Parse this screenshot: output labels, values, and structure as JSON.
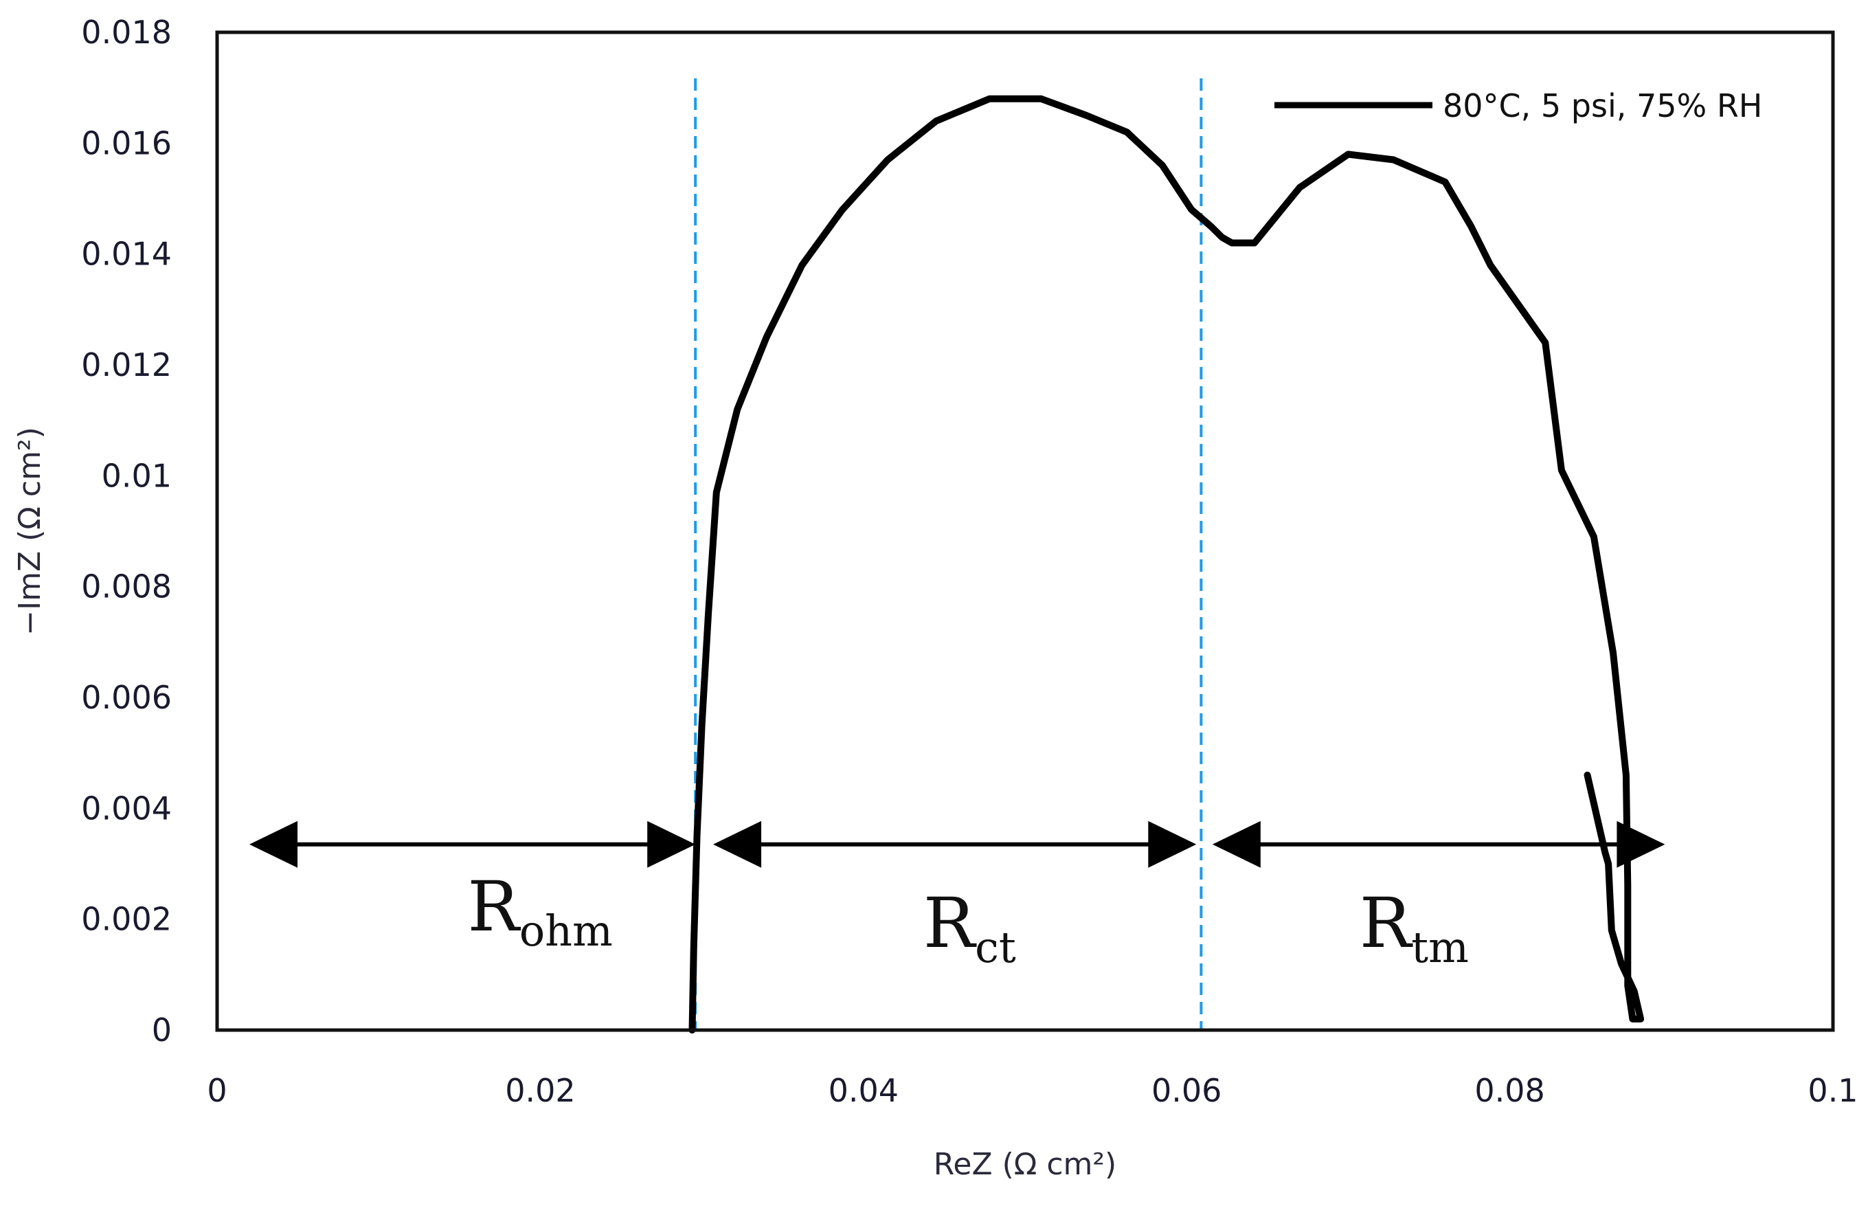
{
  "chart_data": {
    "type": "line",
    "title": "",
    "xlabel": "ReZ (Ω cm²)",
    "ylabel": "−ImZ (Ω cm²)",
    "xlim": [
      0,
      0.1
    ],
    "ylim": [
      0,
      0.018
    ],
    "xticks": [
      "0",
      "0.02",
      "0.04",
      "0.06",
      "0.08",
      "0.1"
    ],
    "yticks": [
      "0",
      "0.002",
      "0.004",
      "0.006",
      "0.008",
      "0.01",
      "0.012",
      "0.014",
      "0.016",
      "0.018"
    ],
    "series": [
      {
        "name": "80°C, 5 psi, 75% RH",
        "color": "#000000",
        "x": [
          0.0294,
          0.0295,
          0.0297,
          0.03,
          0.0304,
          0.0309,
          0.0322,
          0.034,
          0.0362,
          0.0387,
          0.0415,
          0.0445,
          0.0478,
          0.051,
          0.0538,
          0.0563,
          0.0585,
          0.0603,
          0.0615,
          0.0622,
          0.0628,
          0.0642,
          0.067,
          0.07,
          0.0728,
          0.076,
          0.0776,
          0.0788,
          0.0805,
          0.0822,
          0.0832,
          0.0852,
          0.0864,
          0.0872,
          0.0873,
          0.0873,
          0.0876,
          0.0881,
          0.0877,
          0.0869,
          0.0863,
          0.0861,
          0.0859,
          0.0848
        ],
        "y": [
          0.0,
          0.0015,
          0.0035,
          0.0055,
          0.0075,
          0.0097,
          0.0112,
          0.0125,
          0.0138,
          0.0148,
          0.0157,
          0.0164,
          0.0168,
          0.0168,
          0.0165,
          0.0162,
          0.0156,
          0.0148,
          0.0145,
          0.0143,
          0.0142,
          0.0142,
          0.0152,
          0.0158,
          0.0157,
          0.0153,
          0.0145,
          0.0138,
          0.0131,
          0.0124,
          0.0101,
          0.0089,
          0.0068,
          0.0046,
          0.0026,
          0.0008,
          0.0002,
          0.0002,
          0.0007,
          0.0012,
          0.0018,
          0.003,
          0.0032,
          0.0046
        ]
      }
    ],
    "vlines": [
      {
        "x": 0.0296,
        "color": "#1e9be8",
        "style": "dashed"
      },
      {
        "x": 0.0609,
        "color": "#1e9be8",
        "style": "dashed"
      }
    ],
    "annotations": [
      {
        "label": "R",
        "sub": "ohm",
        "x_from": 0.002,
        "x_to": 0.0296,
        "arrow_y": 0.00335,
        "label_x": 0.0155,
        "label_y": 0.0018
      },
      {
        "label": "R",
        "sub": "ct",
        "x_from": 0.0307,
        "x_to": 0.0606,
        "arrow_y": 0.00335,
        "label_x": 0.0437,
        "label_y": 0.0015
      },
      {
        "label": "R",
        "sub": "tm",
        "x_from": 0.0616,
        "x_to": 0.0896,
        "arrow_y": 0.00335,
        "label_x": 0.0707,
        "label_y": 0.0015
      }
    ],
    "legend": {
      "label": "80°C, 5 psi, 75% RH",
      "position": "top-right"
    },
    "grid": false
  }
}
